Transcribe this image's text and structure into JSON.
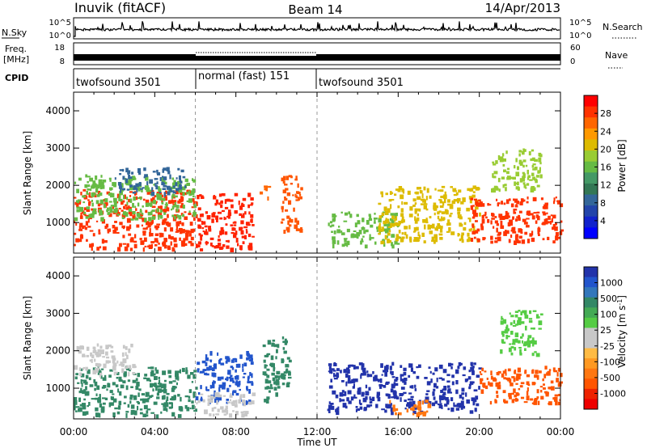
{
  "header": {
    "station": "Inuvik (fitACF)",
    "beam": "Beam 14",
    "date": "14/Apr/2013"
  },
  "top_panels": {
    "nsky_label": "N.Sky",
    "nsky_ticks": [
      "10^5",
      "10^0"
    ],
    "nsearch_label": "N.Search",
    "nsearch_ticks": [
      "10^5",
      "10^0"
    ],
    "freq_label": "Freq.",
    "freq_unit": "[MHz]",
    "freq_ticks": [
      "18",
      "8"
    ],
    "nave_label": "Nave",
    "nave_ticks": [
      "60",
      "0"
    ],
    "cpid_label": "CPID",
    "cpid_segments": [
      {
        "label": "twofsound 3501",
        "start_h": 0,
        "end_h": 6
      },
      {
        "label": "normal (fast) 151",
        "start_h": 6,
        "end_h": 12
      },
      {
        "label": "twofsound 3501",
        "start_h": 12,
        "end_h": 24
      }
    ]
  },
  "colorbars": {
    "power": {
      "title": "Power [dB]",
      "ticks": [
        "28",
        "24",
        "20",
        "16",
        "12",
        "8",
        "4"
      ],
      "colors": [
        "#ff0000",
        "#ff3300",
        "#ff6600",
        "#ff9900",
        "#ddbb00",
        "#99cc33",
        "#66bb44",
        "#449966",
        "#337755",
        "#336699",
        "#2244aa",
        "#1122cc",
        "#0000ff"
      ]
    },
    "velocity": {
      "title": "Velocity [m s",
      "title_sup": "-1",
      "title_end": "]",
      "ticks": [
        "1000",
        "500",
        "100",
        "25",
        "-25",
        "-100",
        "-500",
        "-1000"
      ],
      "colors": [
        "#2233aa",
        "#2255cc",
        "#3377bb",
        "#338866",
        "#44aa55",
        "#55cc44",
        "#c8c8c8",
        "#c8c8c8",
        "#ffbb44",
        "#ff9922",
        "#ff7711",
        "#ff5500",
        "#ee2200",
        "#ee0000"
      ]
    }
  },
  "chart_data": [
    {
      "type": "heatmap",
      "name": "",
      "ylabel": "Slant Range [km]",
      "ylim": [
        180,
        4500
      ],
      "y_ticks": [
        "1000",
        "2000",
        "3000",
        "4000"
      ],
      "x_ticks": [
        "00:00",
        "04:00",
        "08:00",
        "12:00",
        "16:00",
        "20:00",
        "00:00"
      ],
      "xlim_hours": [
        0,
        24
      ],
      "blobs": [
        {
          "t0": 0.0,
          "t1": 6.0,
          "r0": 300,
          "r1": 1900,
          "c": "#ff3300"
        },
        {
          "t0": 0.0,
          "t1": 6.0,
          "r0": 1100,
          "r1": 2300,
          "c": "#66bb44"
        },
        {
          "t0": 6.0,
          "t1": 8.8,
          "r0": 300,
          "r1": 1800,
          "c": "#ff2200"
        },
        {
          "t0": 9.0,
          "t1": 9.6,
          "r0": 1700,
          "r1": 2000,
          "c": "#ff6600"
        },
        {
          "t0": 10.2,
          "t1": 11.2,
          "r0": 800,
          "r1": 2300,
          "c": "#ff5500"
        },
        {
          "t0": 12.5,
          "t1": 16.0,
          "r0": 400,
          "r1": 1300,
          "c": "#66bb44"
        },
        {
          "t0": 15.0,
          "t1": 20.0,
          "r0": 500,
          "r1": 2000,
          "c": "#ddbb00"
        },
        {
          "t0": 19.5,
          "t1": 24.0,
          "r0": 500,
          "r1": 1700,
          "c": "#ff3300"
        },
        {
          "t0": 20.5,
          "t1": 23.0,
          "r0": 1900,
          "r1": 3000,
          "c": "#99cc33"
        },
        {
          "t0": 2.0,
          "t1": 5.5,
          "r0": 1800,
          "r1": 2500,
          "c": "#336699"
        }
      ]
    },
    {
      "type": "heatmap",
      "name": "",
      "ylabel": "Slant Range [km]",
      "xlabel": "Time UT",
      "ylim": [
        180,
        4500
      ],
      "y_ticks": [
        "1000",
        "2000",
        "3000",
        "4000"
      ],
      "x_ticks": [
        "00:00",
        "04:00",
        "08:00",
        "12:00",
        "16:00",
        "20:00",
        "00:00"
      ],
      "xlim_hours": [
        0,
        24
      ],
      "blobs": [
        {
          "t0": 0.0,
          "t1": 6.0,
          "r0": 300,
          "r1": 1600,
          "c": "#338866"
        },
        {
          "t0": 0.0,
          "t1": 3.0,
          "r0": 1400,
          "r1": 2200,
          "c": "#c8c8c8"
        },
        {
          "t0": 6.0,
          "t1": 8.8,
          "r0": 600,
          "r1": 2000,
          "c": "#2255cc"
        },
        {
          "t0": 6.0,
          "t1": 8.8,
          "r0": 300,
          "r1": 900,
          "c": "#c8c8c8"
        },
        {
          "t0": 9.3,
          "t1": 10.6,
          "r0": 600,
          "r1": 2400,
          "c": "#338866"
        },
        {
          "t0": 12.5,
          "t1": 20.0,
          "r0": 400,
          "r1": 1700,
          "c": "#2233aa"
        },
        {
          "t0": 15.5,
          "t1": 17.5,
          "r0": 300,
          "r1": 700,
          "c": "#ff7711"
        },
        {
          "t0": 20.0,
          "t1": 24.0,
          "r0": 600,
          "r1": 1600,
          "c": "#ff5500"
        },
        {
          "t0": 21.0,
          "t1": 23.0,
          "r0": 1900,
          "r1": 3100,
          "c": "#55cc44"
        }
      ]
    }
  ]
}
